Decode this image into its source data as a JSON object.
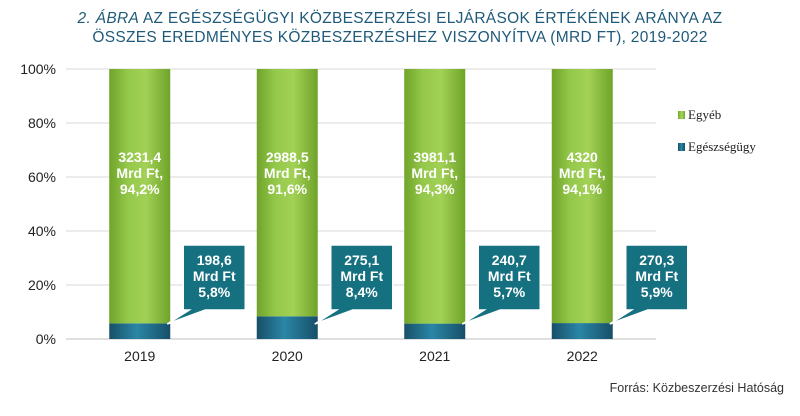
{
  "title": {
    "lead": "2. ÁBRA",
    "line1_rest": " AZ EGÉSZSÉGÜGYI KÖZBESZERZÉSI ELJÁRÁSOK ÉRTÉKÉNEK ARÁNYA AZ",
    "line2": "ÖSSZES EREDMÉNYES KÖZBESZERZÉSHEZ VISZONYÍTVA (MRD FT), 2019-2022"
  },
  "source": "Forrás: Közbeszerzési Hatóság",
  "colors": {
    "egyeb": "#8dc63f",
    "egeszsegugy": "#1f6f8b",
    "callout": "#157080",
    "grid": "#d9d9d9"
  },
  "chart_data": {
    "type": "bar",
    "stacked": true,
    "categories": [
      "2019",
      "2020",
      "2021",
      "2022"
    ],
    "ylim": [
      0,
      100
    ],
    "yticks": [
      "0%",
      "20%",
      "40%",
      "60%",
      "80%",
      "100%"
    ],
    "grid": true,
    "legend_position": "right",
    "series": [
      {
        "name": "Egészségügy",
        "values": [
          5.8,
          8.4,
          5.7,
          5.9
        ],
        "labels": [
          [
            "198,6",
            "Mrd Ft",
            "5,8%"
          ],
          [
            "275,1",
            "Mrd Ft",
            "8,4%"
          ],
          [
            "240,7",
            "Mrd Ft",
            "5,7%"
          ],
          [
            "270,3",
            "Mrd Ft",
            "5,9%"
          ]
        ]
      },
      {
        "name": "Egyéb",
        "values": [
          94.2,
          91.6,
          94.3,
          94.1
        ],
        "labels": [
          [
            "3231,4",
            "Mrd Ft,",
            "94,2%"
          ],
          [
            "2988,5",
            "Mrd Ft,",
            "91,6%"
          ],
          [
            "3981,1",
            "Mrd Ft,",
            "94,3%"
          ],
          [
            "4320",
            "Mrd Ft,",
            "94,1%"
          ]
        ]
      }
    ],
    "legend": [
      "Egyéb",
      "Egészségügy"
    ]
  }
}
